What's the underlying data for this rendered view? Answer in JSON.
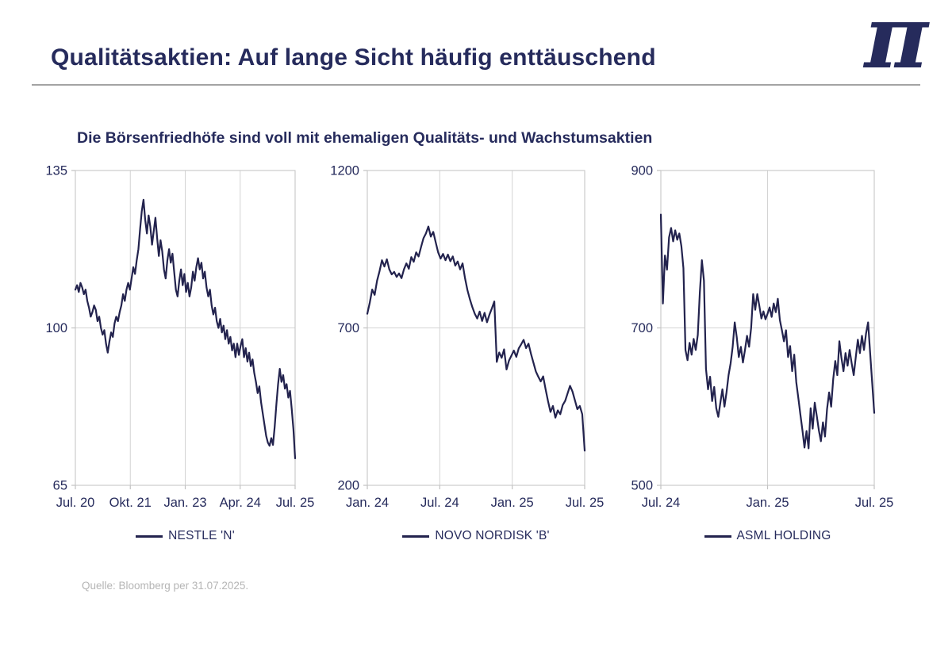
{
  "page": {
    "title": "Qualitätsaktien: Auf lange Sicht häufig enttäuschend",
    "logo_glyph": "π",
    "subtitle": "Die Börsenfriedhöfe sind voll mit ehemaligen Qualitäts- und Wachstumsaktien",
    "source": "Quelle: Bloomberg per 31.07.2025."
  },
  "colors": {
    "accent_navy": "#262b5c",
    "line_navy": "#23234e",
    "grid_gray": "#d4d4d4",
    "axis_gray": "#c2c2c2",
    "divider_gray": "#a3a3a3",
    "source_gray": "#b5b5b5",
    "background": "#ffffff"
  },
  "chart_data": [
    {
      "type": "line",
      "name": "NESTLE 'N'",
      "ylim": [
        65,
        135
      ],
      "yticks": [
        65,
        100,
        135
      ],
      "xticklabels": [
        "Jul. 20",
        "Okt. 21",
        "Jan. 23",
        "Apr. 24",
        "Jul. 25"
      ],
      "grid": "internal gridlines only, light gray, full plot border",
      "legend_position": "bottom",
      "values": [
        108.5,
        109.5,
        108,
        110,
        109,
        107.5,
        108.5,
        106,
        104.5,
        102.5,
        103.5,
        105,
        104,
        101.5,
        102.5,
        100,
        98.5,
        99.5,
        96.5,
        94.5,
        97,
        99,
        98,
        101,
        102.5,
        101.5,
        103.5,
        105,
        107.5,
        106,
        108.5,
        110,
        108.5,
        111,
        113.5,
        112,
        115,
        117.5,
        122,
        126,
        128.5,
        124,
        121,
        125,
        122.5,
        118.5,
        121.5,
        124.5,
        120,
        116,
        119.5,
        117,
        113,
        111,
        115,
        117.5,
        114.5,
        116.5,
        112.5,
        108.5,
        107,
        110.5,
        113,
        109.5,
        112,
        108,
        110,
        107,
        109,
        112.5,
        110.5,
        113.5,
        115.5,
        113,
        114.5,
        111,
        112.5,
        109,
        107,
        108.5,
        105,
        103,
        104.5,
        101.5,
        100,
        102,
        99,
        100.5,
        97.5,
        99.5,
        96.5,
        98,
        95,
        96.5,
        93.5,
        96.5,
        94,
        96,
        97.5,
        93.5,
        95.5,
        92.5,
        94.5,
        91.5,
        93,
        90,
        88,
        85.5,
        87,
        83.5,
        81,
        78.5,
        76,
        74.5,
        73.8,
        75.5,
        74,
        78,
        83,
        87.5,
        90.9,
        88,
        89.5,
        86.5,
        87.5,
        84.5,
        86,
        82,
        77.5,
        71
      ]
    },
    {
      "type": "line",
      "name": "NOVO NORDISK 'B'",
      "ylim": [
        200,
        1200
      ],
      "yticks": [
        200,
        700,
        1200
      ],
      "xticklabels": [
        "Jan. 24",
        "Jul. 24",
        "Jan. 25",
        "Jul. 25"
      ],
      "grid": "internal gridlines only, light gray, full plot border",
      "legend_position": "bottom",
      "values": [
        745,
        780,
        822,
        805,
        850,
        880,
        915,
        895,
        918,
        886,
        870,
        878,
        862,
        873,
        858,
        886,
        905,
        888,
        925,
        910,
        940,
        927,
        957,
        985,
        1000,
        1022,
        990,
        1005,
        972,
        940,
        920,
        935,
        915,
        933,
        912,
        927,
        898,
        911,
        886,
        905,
        858,
        820,
        791,
        766,
        745,
        730,
        752,
        722,
        748,
        718,
        742,
        762,
        784,
        592,
        622,
        605,
        632,
        568,
        596,
        612,
        628,
        608,
        635,
        648,
        662,
        636,
        650,
        618,
        590,
        562,
        545,
        530,
        546,
        505,
        467,
        433,
        452,
        415,
        438,
        426,
        455,
        468,
        492,
        516,
        498,
        470,
        442,
        452,
        426,
        310
      ]
    },
    {
      "type": "line",
      "name": "ASML HOLDING",
      "ylim": [
        500,
        900
      ],
      "yticks": [
        500,
        700,
        900
      ],
      "xticklabels": [
        "Jul. 24",
        "Jan. 25",
        "Jul. 25"
      ],
      "grid": "internal gridlines only, light gray, full plot border",
      "legend_position": "bottom",
      "values": [
        844,
        731,
        792,
        774,
        815,
        827,
        810,
        824,
        812,
        820,
        804,
        776,
        672,
        659,
        681,
        666,
        686,
        672,
        691,
        745,
        786,
        760,
        648,
        622,
        638,
        607,
        625,
        598,
        587,
        605,
        622,
        600,
        618,
        640,
        655,
        676,
        707,
        688,
        663,
        676,
        656,
        672,
        690,
        676,
        700,
        743,
        723,
        743,
        728,
        712,
        721,
        711,
        718,
        726,
        714,
        731,
        720,
        737,
        710,
        697,
        683,
        697,
        663,
        677,
        645,
        666,
        631,
        611,
        590,
        570,
        548,
        569,
        547,
        598,
        572,
        605,
        588,
        570,
        556,
        580,
        562,
        597,
        618,
        600,
        635,
        658,
        640,
        683,
        662,
        645,
        668,
        652,
        672,
        655,
        640,
        663,
        685,
        668,
        690,
        672,
        693,
        707,
        668,
        630,
        592
      ]
    }
  ]
}
